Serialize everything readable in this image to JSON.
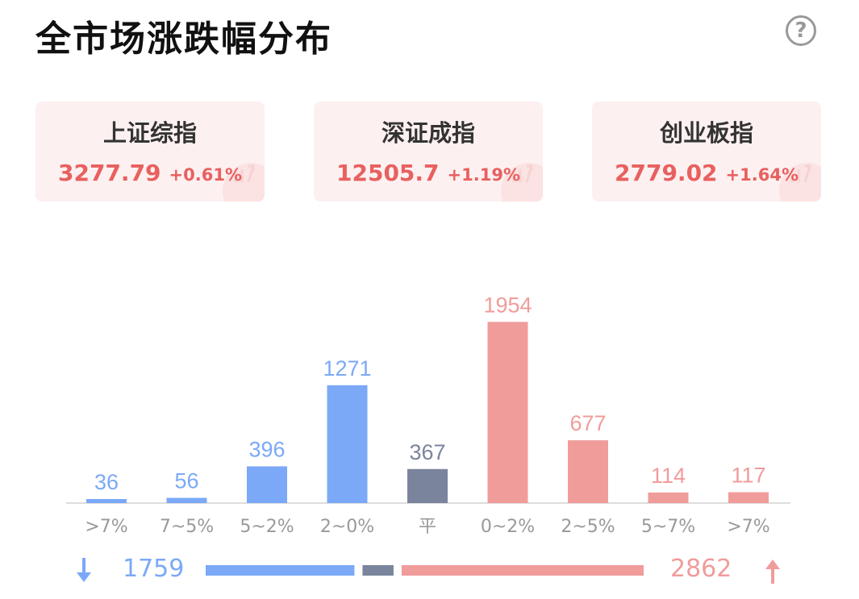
{
  "header": {
    "title": "全市场涨跌幅分布",
    "help_icon": "?"
  },
  "indices": [
    {
      "name": "上证综指",
      "value": "3277.79",
      "change": "+0.61%"
    },
    {
      "name": "深证成指",
      "value": "12505.7",
      "change": "+1.19%"
    },
    {
      "name": "创业板指",
      "value": "2779.02",
      "change": "+1.64%"
    }
  ],
  "colors": {
    "down": "#7ba9f7",
    "flat": "#7a849c",
    "up": "#f09c9b",
    "up_text": "#e8605f"
  },
  "chart_data": {
    "type": "bar",
    "categories": [
      ">7%",
      "7~5%",
      "5~2%",
      "2~0%",
      "平",
      "0~2%",
      "2~5%",
      "5~7%",
      ">7%"
    ],
    "values": [
      36,
      56,
      396,
      1271,
      367,
      1954,
      677,
      114,
      117
    ],
    "groups": [
      "down",
      "down",
      "down",
      "down",
      "flat",
      "up",
      "up",
      "up",
      "up"
    ],
    "ylim": [
      0,
      2000
    ]
  },
  "tally": {
    "down_total": "1759",
    "up_total": "2862"
  }
}
